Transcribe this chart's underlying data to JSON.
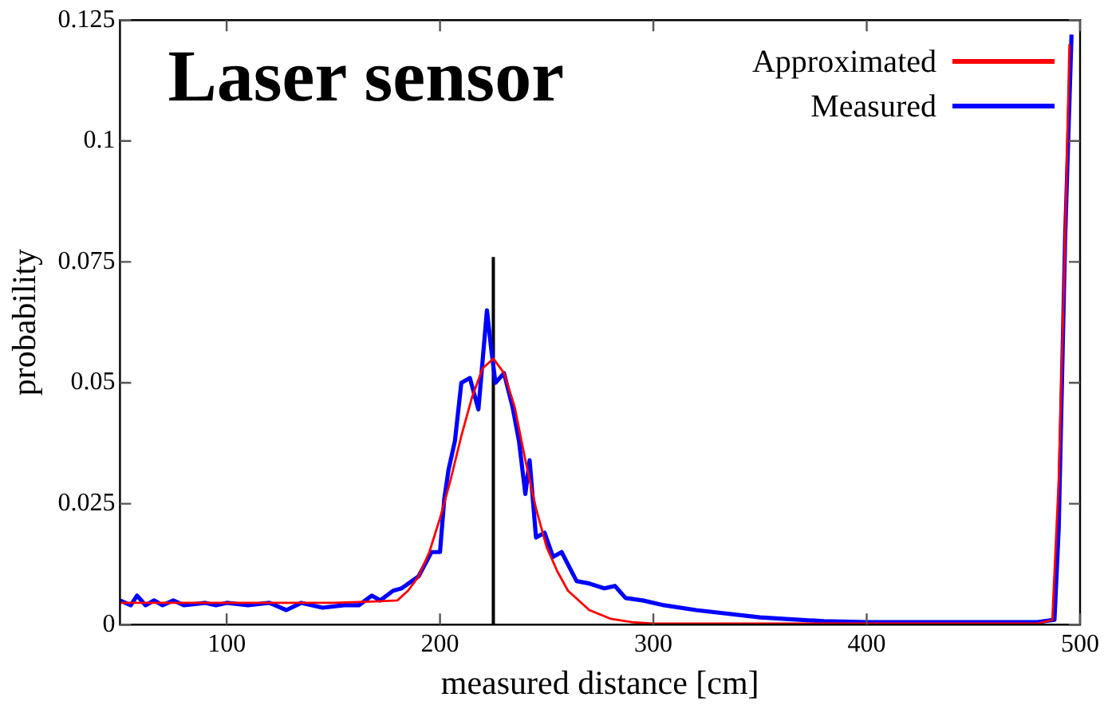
{
  "chart_data": {
    "type": "line",
    "title": "Laser sensor",
    "xlabel": "measured distance [cm]",
    "ylabel": "probability",
    "xlim": [
      50,
      500
    ],
    "xticks": [
      100,
      200,
      300,
      400,
      500
    ],
    "ylim": [
      0,
      0.125
    ],
    "yticks": [
      0,
      0.025,
      0.05,
      0.075,
      0.1,
      0.125
    ],
    "grid": false,
    "legend": "top right",
    "line_style": "solid",
    "marker": "none",
    "series": [
      {
        "name": "Approximated",
        "color": "#ff0000",
        "x": [
          50,
          100,
          150,
          170,
          180,
          185,
          190,
          195,
          200,
          205,
          210,
          215,
          220,
          225,
          230,
          235,
          240,
          245,
          250,
          255,
          260,
          270,
          280,
          290,
          300,
          400,
          480,
          487,
          490,
          493,
          495
        ],
        "values": [
          0.0045,
          0.0045,
          0.0045,
          0.0048,
          0.005,
          0.007,
          0.01,
          0.015,
          0.022,
          0.03,
          0.039,
          0.047,
          0.053,
          0.055,
          0.052,
          0.045,
          0.034,
          0.024,
          0.016,
          0.011,
          0.007,
          0.003,
          0.0012,
          0.0005,
          0.0002,
          0.0002,
          0.0002,
          0.001,
          0.03,
          0.08,
          0.12
        ]
      },
      {
        "name": "Measured",
        "color": "#0000ff",
        "x": [
          50,
          55,
          58,
          62,
          66,
          70,
          75,
          80,
          90,
          95,
          100,
          110,
          120,
          128,
          135,
          145,
          155,
          162,
          168,
          172,
          178,
          182,
          190,
          196,
          200,
          202,
          204,
          207,
          210,
          214,
          218,
          222,
          224,
          226,
          230,
          234,
          237,
          240,
          242,
          245,
          249,
          253,
          257,
          264,
          270,
          277,
          282,
          287,
          295,
          305,
          320,
          350,
          380,
          400,
          450,
          480,
          488,
          490,
          493,
          496
        ],
        "values": [
          0.005,
          0.004,
          0.006,
          0.004,
          0.005,
          0.004,
          0.005,
          0.004,
          0.0045,
          0.004,
          0.0045,
          0.004,
          0.0045,
          0.003,
          0.0045,
          0.0035,
          0.004,
          0.004,
          0.006,
          0.005,
          0.007,
          0.0075,
          0.01,
          0.015,
          0.015,
          0.026,
          0.032,
          0.038,
          0.05,
          0.051,
          0.0445,
          0.065,
          0.057,
          0.05,
          0.052,
          0.045,
          0.038,
          0.027,
          0.034,
          0.018,
          0.019,
          0.014,
          0.015,
          0.009,
          0.0085,
          0.0075,
          0.008,
          0.0055,
          0.005,
          0.004,
          0.003,
          0.0015,
          0.0007,
          0.0005,
          0.0005,
          0.0005,
          0.001,
          0.02,
          0.08,
          0.122
        ]
      },
      {
        "color": "#000000",
        "x": [
          225,
          225
        ],
        "values": [
          0,
          0.076
        ]
      }
    ]
  }
}
